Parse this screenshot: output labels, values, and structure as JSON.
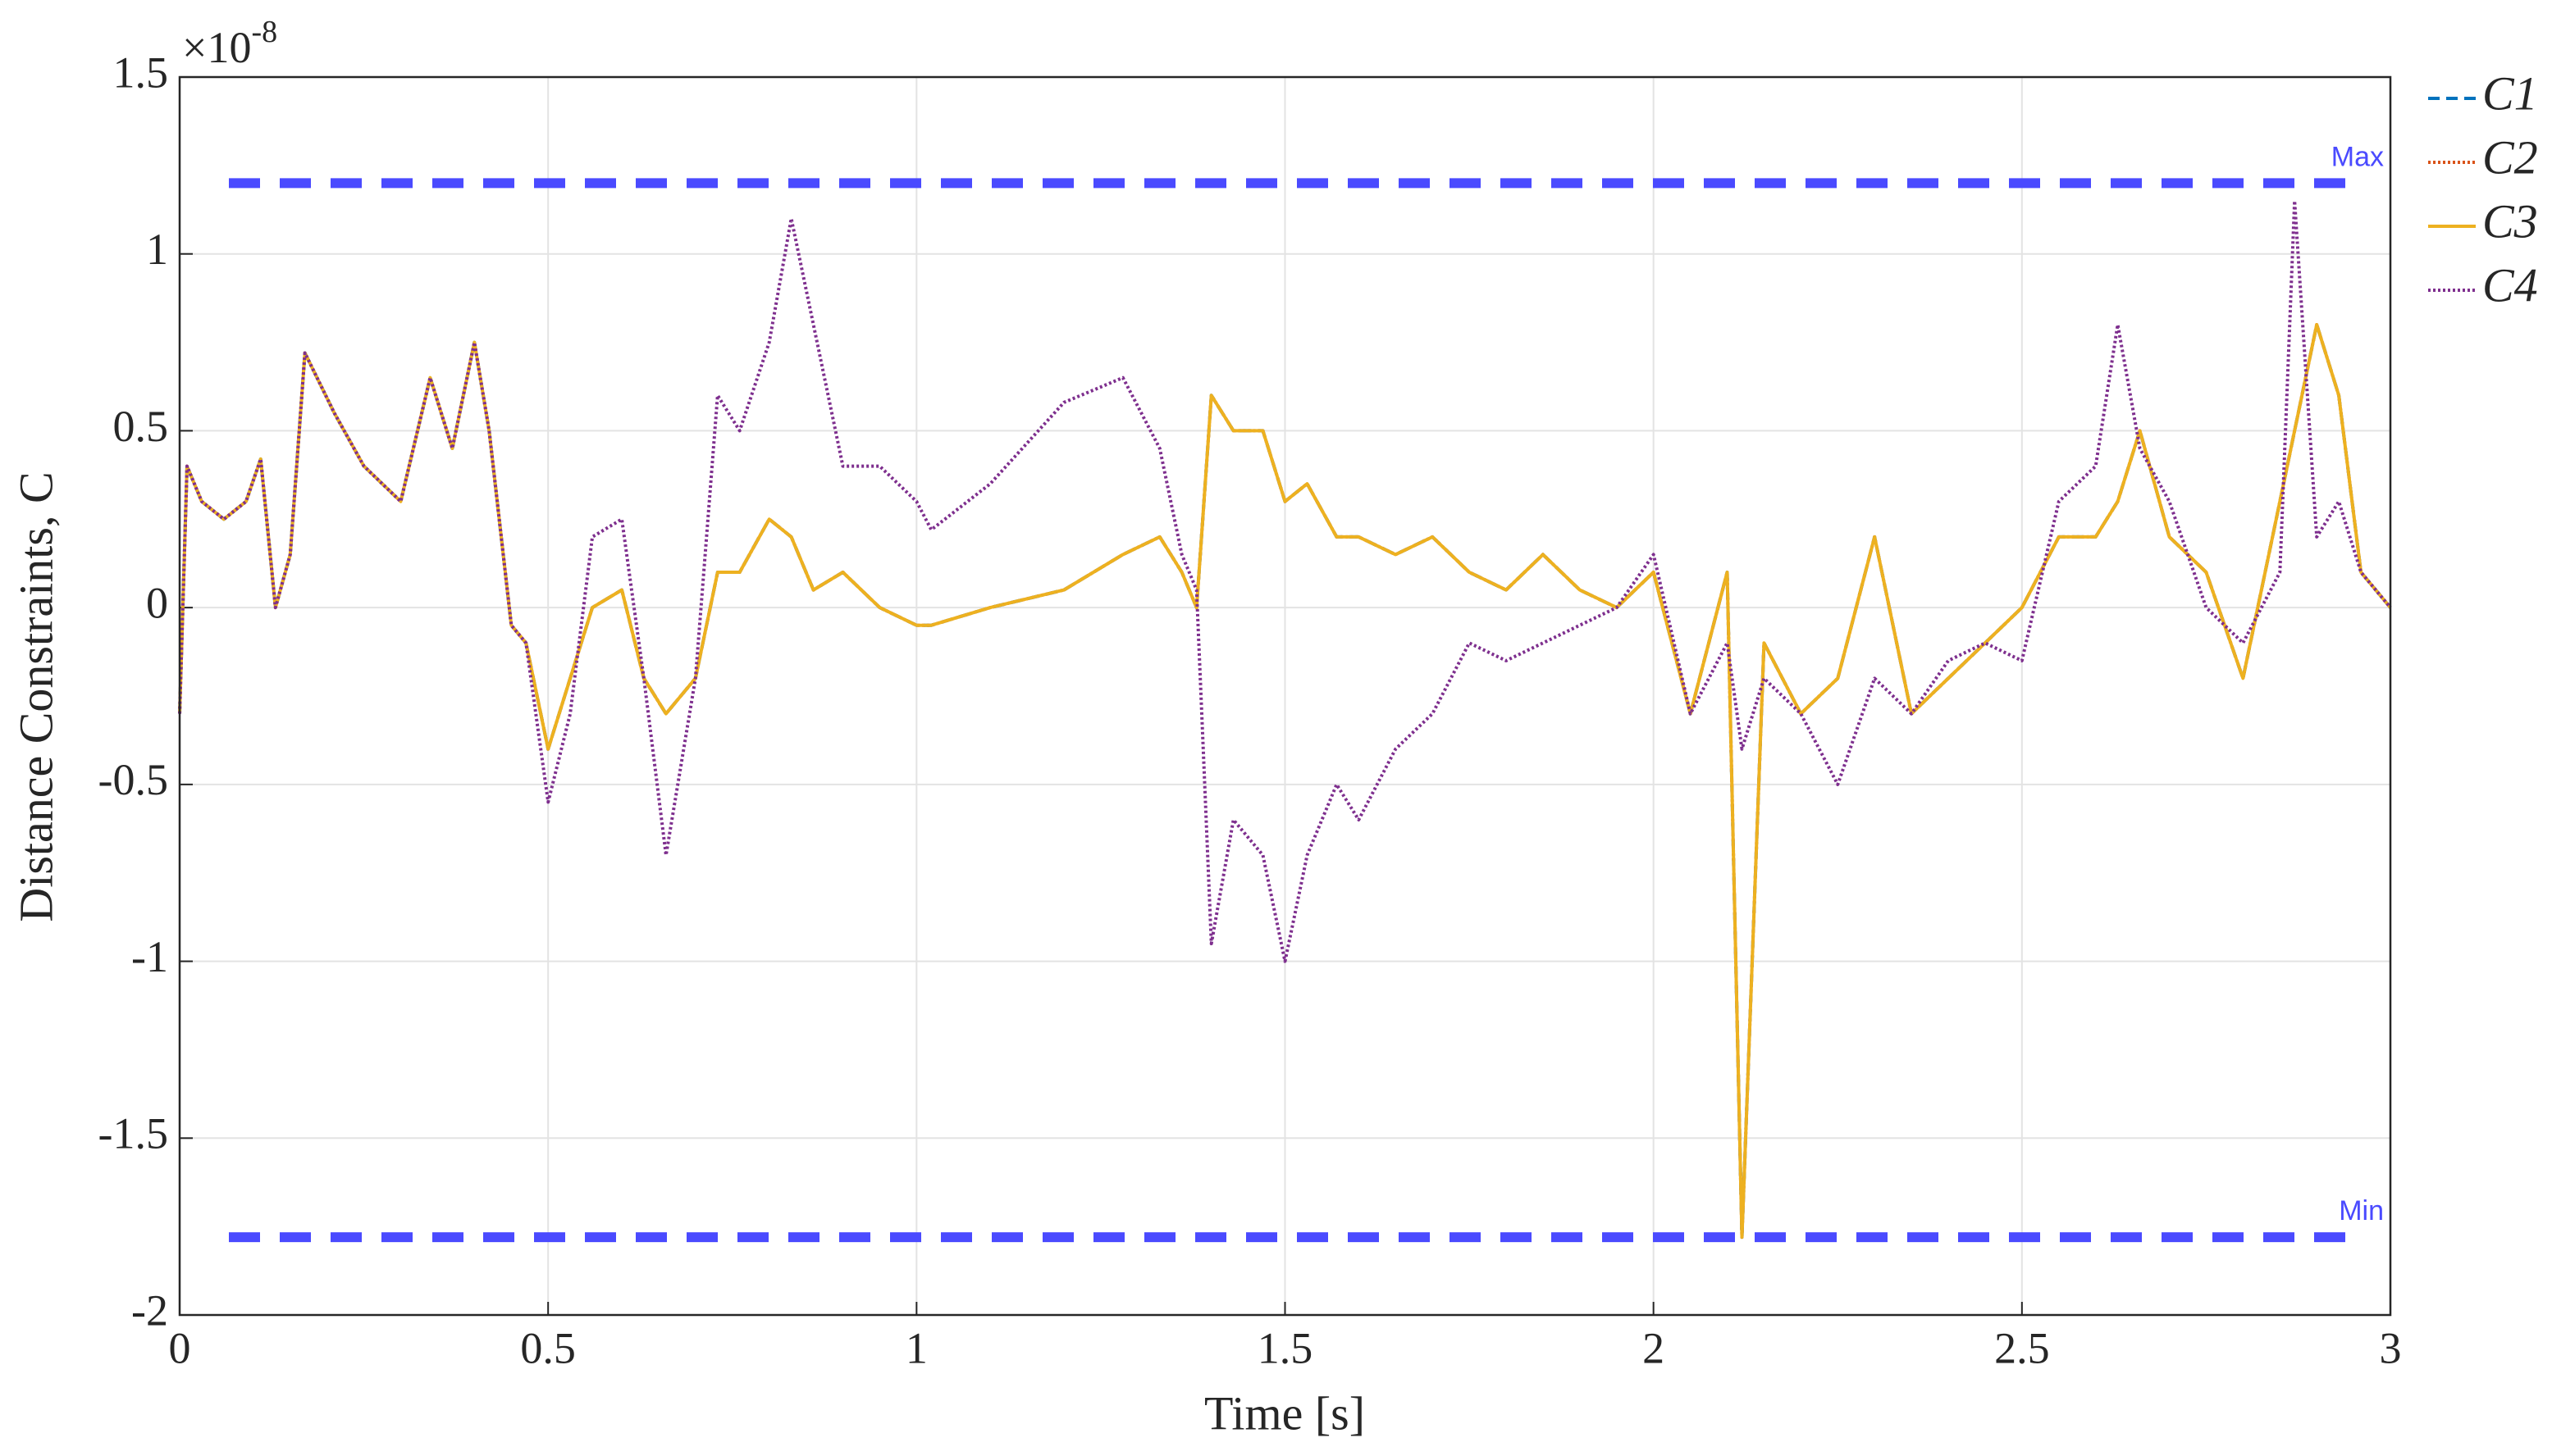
{
  "chart_data": {
    "type": "line",
    "xlabel": "Time [s]",
    "ylabel": "Distance Constraints, C",
    "y_multiplier_base": "×10",
    "y_multiplier_exponent": "-8",
    "xlim": [
      0,
      3
    ],
    "xticks": [
      0,
      0.5,
      1,
      1.5,
      2,
      2.5,
      3
    ],
    "ylim": [
      -2,
      1.5
    ],
    "yticks": [
      -2,
      -1.5,
      -1,
      -0.5,
      0,
      0.5,
      1,
      1.5
    ],
    "grid": true,
    "legend": "outside-right",
    "reference_lines": [
      {
        "label": "Max",
        "value": 1.2,
        "color": "#4a4aff"
      },
      {
        "label": "Min",
        "value": -1.78,
        "color": "#4a4aff"
      }
    ],
    "x": [
      0,
      0.01,
      0.03,
      0.06,
      0.09,
      0.11,
      0.13,
      0.15,
      0.17,
      0.21,
      0.25,
      0.3,
      0.34,
      0.37,
      0.4,
      0.42,
      0.45,
      0.47,
      0.5,
      0.53,
      0.56,
      0.6,
      0.63,
      0.66,
      0.7,
      0.73,
      0.76,
      0.8,
      0.83,
      0.86,
      0.9,
      0.95,
      1.0,
      1.02,
      1.1,
      1.2,
      1.28,
      1.33,
      1.36,
      1.38,
      1.4,
      1.43,
      1.47,
      1.5,
      1.53,
      1.57,
      1.6,
      1.65,
      1.7,
      1.75,
      1.8,
      1.85,
      1.9,
      1.95,
      2.0,
      2.05,
      2.1,
      2.12,
      2.15,
      2.2,
      2.25,
      2.3,
      2.35,
      2.4,
      2.45,
      2.5,
      2.55,
      2.6,
      2.63,
      2.66,
      2.7,
      2.75,
      2.8,
      2.85,
      2.87,
      2.9,
      2.93,
      2.96,
      3.0
    ],
    "series": [
      {
        "name": "C1",
        "color": "#0072bd",
        "dash": "dashed",
        "values": [
          -0.3,
          0.4,
          0.3,
          0.25,
          0.3,
          0.42,
          0.0,
          0.15,
          0.72,
          0.55,
          0.4,
          0.3,
          0.65,
          0.45,
          0.75,
          0.5,
          -0.05,
          -0.1,
          -0.4,
          -0.2,
          0.0,
          0.05,
          -0.2,
          -0.3,
          -0.2,
          0.1,
          0.1,
          0.25,
          0.2,
          0.05,
          0.1,
          0.0,
          -0.05,
          -0.05,
          0.0,
          0.05,
          0.15,
          0.2,
          0.1,
          0.0,
          0.6,
          0.5,
          0.5,
          0.3,
          0.35,
          0.2,
          0.2,
          0.15,
          0.2,
          0.1,
          0.05,
          0.15,
          0.05,
          0.0,
          0.1,
          -0.3,
          0.1,
          -1.78,
          -0.1,
          -0.3,
          -0.2,
          0.2,
          -0.3,
          -0.2,
          -0.1,
          0.0,
          0.2,
          0.2,
          0.3,
          0.5,
          0.2,
          0.1,
          -0.2,
          0.3,
          0.5,
          0.8,
          0.6,
          0.1,
          0.0
        ]
      },
      {
        "name": "C2",
        "color": "#d95319",
        "dash": "dotted",
        "values": [
          -0.3,
          0.4,
          0.3,
          0.25,
          0.3,
          0.42,
          0.0,
          0.15,
          0.72,
          0.55,
          0.4,
          0.3,
          0.65,
          0.45,
          0.75,
          0.5,
          -0.05,
          -0.1,
          -0.4,
          -0.2,
          0.0,
          0.05,
          -0.2,
          -0.3,
          -0.2,
          0.1,
          0.1,
          0.25,
          0.2,
          0.05,
          0.1,
          0.0,
          -0.05,
          -0.05,
          0.0,
          0.05,
          0.15,
          0.2,
          0.1,
          0.0,
          0.6,
          0.5,
          0.5,
          0.3,
          0.35,
          0.2,
          0.2,
          0.15,
          0.2,
          0.1,
          0.05,
          0.15,
          0.05,
          0.0,
          0.1,
          -0.3,
          0.1,
          -1.78,
          -0.1,
          -0.3,
          -0.2,
          0.2,
          -0.3,
          -0.2,
          -0.1,
          0.0,
          0.2,
          0.2,
          0.3,
          0.5,
          0.2,
          0.1,
          -0.2,
          0.3,
          0.5,
          0.8,
          0.6,
          0.1,
          0.0
        ]
      },
      {
        "name": "C3",
        "color": "#edb120",
        "dash": "solid",
        "values": [
          -0.3,
          0.4,
          0.3,
          0.25,
          0.3,
          0.42,
          0.0,
          0.15,
          0.72,
          0.55,
          0.4,
          0.3,
          0.65,
          0.45,
          0.75,
          0.5,
          -0.05,
          -0.1,
          -0.4,
          -0.2,
          0.0,
          0.05,
          -0.2,
          -0.3,
          -0.2,
          0.1,
          0.1,
          0.25,
          0.2,
          0.05,
          0.1,
          0.0,
          -0.05,
          -0.05,
          0.0,
          0.05,
          0.15,
          0.2,
          0.1,
          0.0,
          0.6,
          0.5,
          0.5,
          0.3,
          0.35,
          0.2,
          0.2,
          0.15,
          0.2,
          0.1,
          0.05,
          0.15,
          0.05,
          0.0,
          0.1,
          -0.3,
          0.1,
          -1.78,
          -0.1,
          -0.3,
          -0.2,
          0.2,
          -0.3,
          -0.2,
          -0.1,
          0.0,
          0.2,
          0.2,
          0.3,
          0.5,
          0.2,
          0.1,
          -0.2,
          0.3,
          0.5,
          0.8,
          0.6,
          0.1,
          0.0
        ]
      },
      {
        "name": "C4",
        "color": "#7e2f8e",
        "dash": "dotted",
        "values": [
          -0.3,
          0.4,
          0.3,
          0.25,
          0.3,
          0.42,
          0.0,
          0.15,
          0.72,
          0.55,
          0.4,
          0.3,
          0.65,
          0.45,
          0.75,
          0.5,
          -0.05,
          -0.1,
          -0.55,
          -0.3,
          0.2,
          0.25,
          -0.2,
          -0.7,
          -0.2,
          0.6,
          0.5,
          0.75,
          1.1,
          0.8,
          0.4,
          0.4,
          0.3,
          0.22,
          0.35,
          0.58,
          0.65,
          0.45,
          0.15,
          0.05,
          -0.95,
          -0.6,
          -0.7,
          -1.0,
          -0.7,
          -0.5,
          -0.6,
          -0.4,
          -0.3,
          -0.1,
          -0.15,
          -0.1,
          -0.05,
          0.0,
          0.15,
          -0.3,
          -0.1,
          -0.4,
          -0.2,
          -0.3,
          -0.5,
          -0.2,
          -0.3,
          -0.15,
          -0.1,
          -0.15,
          0.3,
          0.4,
          0.8,
          0.45,
          0.3,
          0.0,
          -0.1,
          0.1,
          1.15,
          0.2,
          0.3,
          0.1,
          0.0
        ]
      }
    ]
  }
}
